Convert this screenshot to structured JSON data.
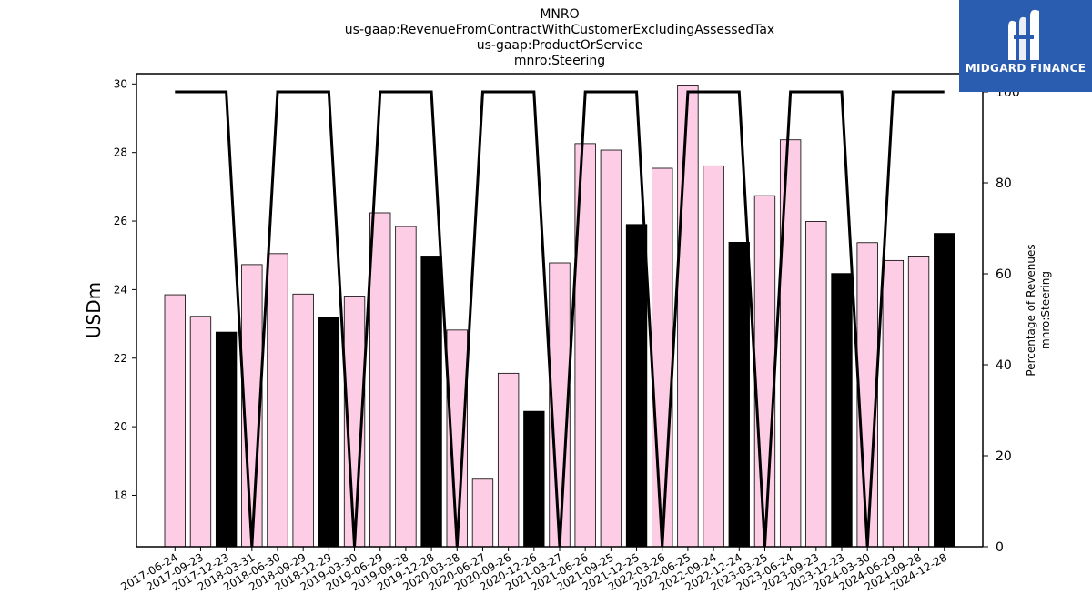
{
  "chart_data": {
    "type": "bar",
    "title_lines": [
      "MNRO",
      "us-gaap:RevenueFromContractWithCustomerExcludingAssessedTax",
      "us-gaap:ProductOrService",
      "mnro:Steering"
    ],
    "ylabel": "USDm",
    "ylabel_right_lines": [
      "Percentage of Revenues",
      "mnro:Steering"
    ],
    "ylim": [
      16.5,
      30.3
    ],
    "y2lim": [
      0,
      104
    ],
    "yticks": [
      "18",
      "20",
      "22",
      "24",
      "26",
      "28",
      "30"
    ],
    "y2ticks": [
      "0",
      "20",
      "40",
      "60",
      "80",
      "100"
    ],
    "categories": [
      "2017-06-24",
      "2017-09-23",
      "2017-12-23",
      "2018-03-31",
      "2018-06-30",
      "2018-09-29",
      "2018-12-29",
      "2019-03-30",
      "2019-06-29",
      "2019-09-28",
      "2019-12-28",
      "2020-03-28",
      "2020-06-27",
      "2020-09-26",
      "2020-12-26",
      "2021-03-27",
      "2021-06-26",
      "2021-09-25",
      "2021-12-25",
      "2022-03-26",
      "2022-06-25",
      "2022-09-24",
      "2022-12-24",
      "2023-03-25",
      "2023-06-24",
      "2023-09-23",
      "2023-12-23",
      "2024-03-30",
      "2024-06-29",
      "2024-09-28",
      "2024-12-28"
    ],
    "values": [
      23.85,
      23.22,
      22.76,
      24.73,
      25.05,
      23.87,
      23.18,
      23.81,
      26.24,
      25.84,
      24.98,
      22.82,
      18.47,
      21.56,
      20.45,
      24.78,
      28.26,
      28.07,
      25.9,
      27.54,
      29.97,
      27.61,
      25.38,
      26.74,
      28.37,
      25.99,
      24.47,
      25.37,
      24.85,
      24.98,
      25.64
    ],
    "highlight": [
      false,
      false,
      true,
      false,
      false,
      false,
      true,
      false,
      false,
      false,
      true,
      false,
      false,
      false,
      true,
      false,
      false,
      false,
      true,
      false,
      false,
      false,
      true,
      false,
      false,
      false,
      true,
      false,
      false,
      false,
      true
    ],
    "line_values": [
      100,
      100,
      100,
      0,
      100,
      100,
      100,
      0,
      100,
      100,
      100,
      0,
      100,
      100,
      100,
      0,
      100,
      100,
      100,
      0,
      100,
      100,
      100,
      0,
      100,
      100,
      100,
      0,
      100,
      100,
      100
    ],
    "colors": {
      "bar": "#fccde5",
      "highlight": "#000000",
      "line": "#000000"
    }
  },
  "logo": {
    "text": "MIDGARD FINANCE",
    "color": "#2a5db0"
  }
}
